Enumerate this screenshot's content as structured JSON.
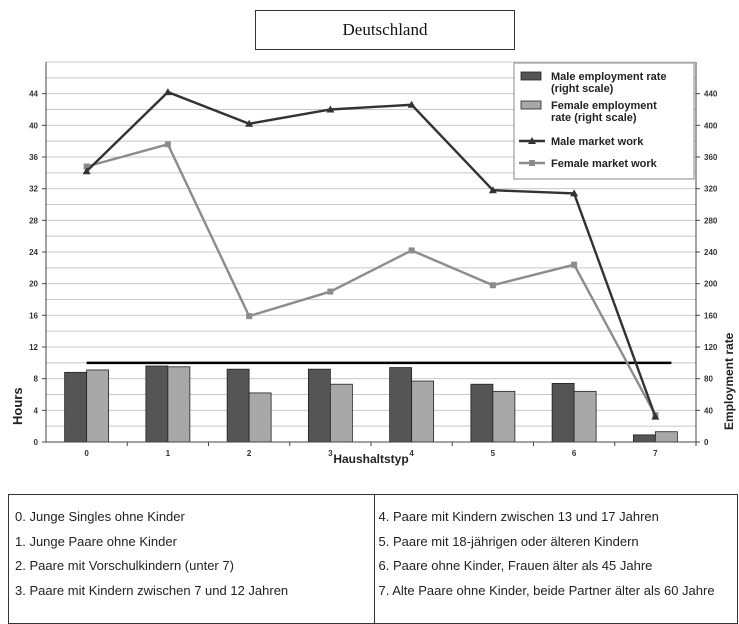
{
  "chart_data": {
    "type": "bar+line",
    "title": "Deutschland",
    "xlabel": "Haushaltstyp",
    "ylabel": "Hours",
    "y2label": "Employment rate",
    "categories": [
      "0",
      "1",
      "2",
      "3",
      "4",
      "5",
      "6",
      "7"
    ],
    "ylim": [
      0,
      48
    ],
    "yticks": [
      0,
      4,
      8,
      12,
      16,
      20,
      24,
      28,
      32,
      36,
      40,
      44
    ],
    "y2lim": [
      0,
      480
    ],
    "y2ticks": [
      0,
      40,
      80,
      120,
      160,
      200,
      240,
      280,
      320,
      360,
      400,
      440
    ],
    "grid": true,
    "legend_position": "top-right",
    "bar_series": [
      {
        "name": "Male employment rate (right scale)",
        "axis": "right",
        "color": "#555555",
        "values": [
          88,
          96,
          92,
          92,
          94,
          73,
          74,
          9
        ]
      },
      {
        "name": "Female employment rate (right scale)",
        "axis": "right",
        "color": "#a8a8a8",
        "values": [
          91,
          95,
          62,
          73,
          77,
          64,
          64,
          13
        ]
      }
    ],
    "line_series": [
      {
        "name": "Male market work",
        "axis": "left",
        "color": "#333333",
        "marker": "triangle",
        "values": [
          34.2,
          44.2,
          40.2,
          42.0,
          42.6,
          31.8,
          31.4,
          3.2
        ]
      },
      {
        "name": "Female market work",
        "axis": "left",
        "color": "#8c8c8c",
        "marker": "square",
        "values": [
          34.8,
          37.6,
          15.9,
          19.0,
          24.2,
          19.8,
          22.4,
          3.4
        ]
      }
    ],
    "reference_line": {
      "axis": "right",
      "value": 100,
      "color": "#000000"
    }
  },
  "descriptions": {
    "left": [
      "0. Junge Singles ohne Kinder",
      "1. Junge Paare ohne Kinder",
      "2. Paare mit Vorschulkindern (unter 7)",
      "3. Paare mit Kindern zwischen 7 und 12 Jahren"
    ],
    "right": [
      "4. Paare mit Kindern zwischen 13 und 17 Jahren",
      "5. Paare mit 18-jährigen oder älteren Kindern",
      "6. Paare ohne Kinder, Frauen älter als 45 Jahre",
      "7. Alte Paare ohne Kinder, beide Partner älter als 60 Jahre"
    ]
  }
}
